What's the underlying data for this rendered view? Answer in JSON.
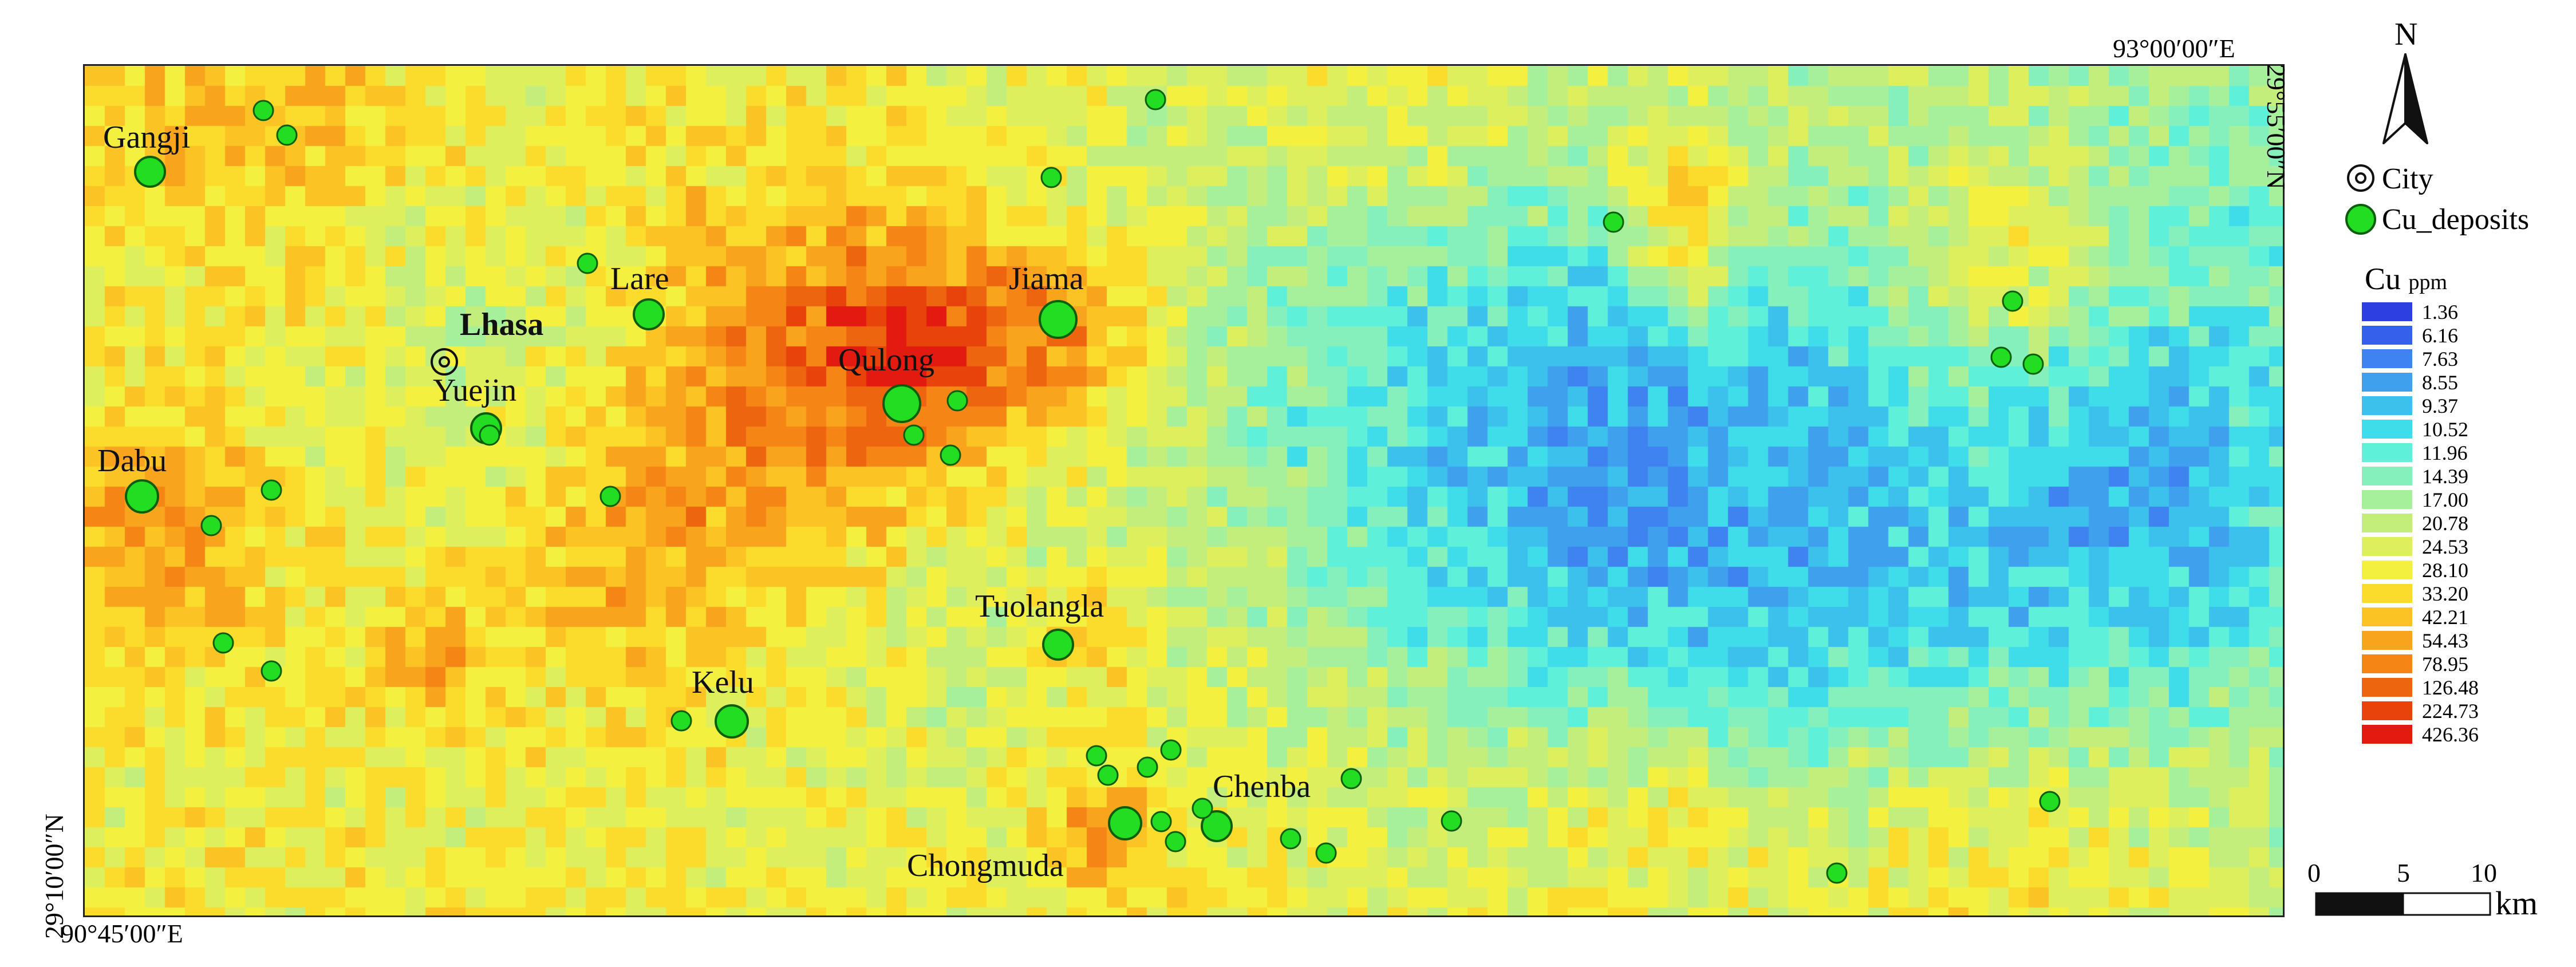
{
  "map": {
    "coordinates": {
      "top_right_lon": "93°00′00″E",
      "bottom_left_lon": "90°45′00″E",
      "top_right_lat": "29°55′00″N",
      "bottom_left_lat": "29°10′00″N"
    },
    "places": [
      {
        "name": "Gangji",
        "bold": false
      },
      {
        "name": "Lare",
        "bold": false
      },
      {
        "name": "Lhasa",
        "bold": true
      },
      {
        "name": "Yuejin",
        "bold": false
      },
      {
        "name": "Jiama",
        "bold": false
      },
      {
        "name": "Qulong",
        "bold": false
      },
      {
        "name": "Dabu",
        "bold": false
      },
      {
        "name": "Tuolangla",
        "bold": false
      },
      {
        "name": "Kelu",
        "bold": false
      },
      {
        "name": "Chenba",
        "bold": false
      },
      {
        "name": "Chongmuda",
        "bold": false
      }
    ],
    "deposit_color": "#22dd22"
  },
  "legend": {
    "north": "N",
    "city_label": "City",
    "deposit_label": "Cu_deposits",
    "title": "Cu",
    "unit": "ppm",
    "classes": [
      {
        "value": "1.36",
        "color": "#2d3fe0"
      },
      {
        "value": "6.16",
        "color": "#3560ec"
      },
      {
        "value": "7.63",
        "color": "#3f83f0"
      },
      {
        "value": "8.55",
        "color": "#3fa0ee"
      },
      {
        "value": "9.37",
        "color": "#3cc0ec"
      },
      {
        "value": "10.52",
        "color": "#3fdcea"
      },
      {
        "value": "11.96",
        "color": "#5ff0da"
      },
      {
        "value": "14.39",
        "color": "#85f0bc"
      },
      {
        "value": "17.00",
        "color": "#a6f09c"
      },
      {
        "value": "20.78",
        "color": "#c4ee7c"
      },
      {
        "value": "24.53",
        "color": "#deef5e"
      },
      {
        "value": "28.10",
        "color": "#f3f040"
      },
      {
        "value": "33.20",
        "color": "#fbdc2c"
      },
      {
        "value": "42.21",
        "color": "#fbc323"
      },
      {
        "value": "54.43",
        "color": "#f8a41c"
      },
      {
        "value": "78.95",
        "color": "#f58616"
      },
      {
        "value": "126.48",
        "color": "#ee6510"
      },
      {
        "value": "224.73",
        "color": "#e8430b"
      },
      {
        "value": "426.36",
        "color": "#e31a10"
      }
    ],
    "scale": {
      "ticks": [
        "0",
        "5",
        "10"
      ],
      "unit": "km"
    }
  }
}
